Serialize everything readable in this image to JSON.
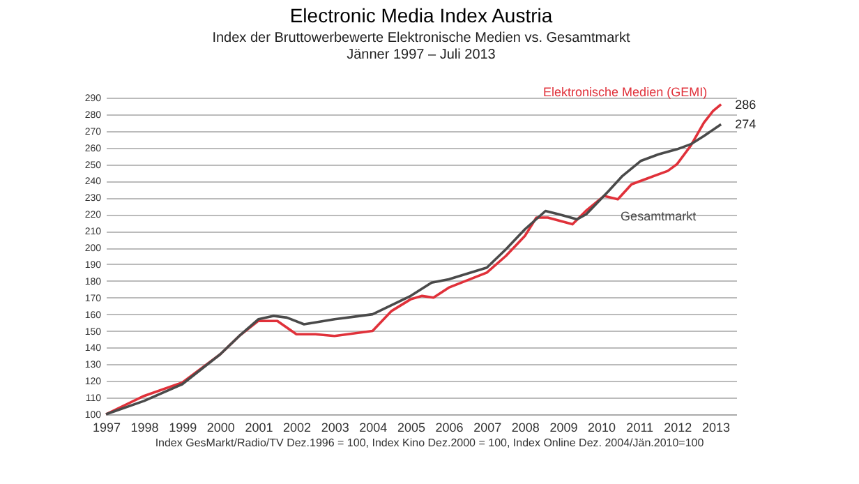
{
  "chart_data": {
    "type": "line",
    "title": "Electronic Media Index Austria",
    "subtitle": "Index der Bruttowerbewerte Elektronische Medien vs. Gesamtmarkt\nJänner 1997 – Juli 2013",
    "annotations": [
      "Index GesMarkt/Radio/TV Dez.1996 = 100, Index Kino Dez.2000 = 100, Index Online  Dez. 2004/Jän.2010=100"
    ],
    "series": [
      {
        "name": "Elektronische Medien (GEMI)",
        "color": "#e0313a",
        "x": [
          1997,
          1998,
          1999,
          2000,
          2000.5,
          2001,
          2001.5,
          2002,
          2002.5,
          2003,
          2004,
          2004.5,
          2005,
          2005.3,
          2005.6,
          2006,
          2007,
          2007.5,
          2008,
          2008.3,
          2008.6,
          2009.25,
          2009.6,
          2010.08,
          2010.44,
          2010.8,
          2011.27,
          2011.75,
          2011.99,
          2012.35,
          2012.7,
          2012.94,
          2013.15
        ],
        "values": [
          100,
          111,
          119,
          136,
          147,
          156,
          156,
          148,
          148,
          147,
          150,
          162,
          169,
          171,
          170,
          176,
          185,
          195,
          207,
          218,
          218,
          214,
          222,
          231,
          229,
          238,
          242,
          246,
          250,
          261,
          275,
          282,
          286
        ],
        "value_labels": [
          null,
          null,
          null,
          null,
          null,
          null,
          null,
          null,
          null,
          null,
          null,
          null,
          null,
          null,
          null,
          null,
          null,
          null,
          null,
          null,
          null,
          null,
          null,
          null,
          null,
          null,
          null,
          null,
          null,
          null,
          null,
          null,
          "286"
        ]
      },
      {
        "name": "Gesamtmarkt",
        "color": "#4a4a4a",
        "x": [
          1997,
          1998,
          1999,
          2000,
          2000.5,
          2001,
          2001.4,
          2001.75,
          2002.2,
          2003,
          2004,
          2005,
          2005.55,
          2006,
          2007,
          2007.5,
          2008,
          2008.54,
          2008.89,
          2009.37,
          2009.61,
          2010.2,
          2010.56,
          2011.04,
          2011.51,
          2011.99,
          2012.35,
          2012.7,
          2013.15
        ],
        "values": [
          100,
          108,
          118,
          136,
          147,
          157,
          159,
          158,
          154,
          157,
          160,
          171,
          179,
          181,
          188,
          199,
          211,
          222,
          220,
          217,
          220,
          234,
          243,
          252,
          256,
          259,
          262,
          267,
          274
        ],
        "value_labels": [
          null,
          null,
          null,
          null,
          null,
          null,
          null,
          null,
          null,
          null,
          null,
          null,
          null,
          null,
          null,
          null,
          null,
          null,
          null,
          null,
          null,
          null,
          null,
          null,
          null,
          null,
          null,
          null,
          "274"
        ]
      }
    ],
    "xlim": [
      1997,
      2013.55
    ],
    "xticks": [
      1997,
      1998,
      1999,
      2000,
      2001,
      2002,
      2003,
      2004,
      2005,
      2006,
      2007,
      2008,
      2009,
      2010,
      2011,
      2012,
      2013
    ],
    "ylim": [
      100,
      290
    ],
    "yticks": [
      100,
      110,
      120,
      130,
      140,
      150,
      160,
      170,
      180,
      190,
      200,
      210,
      220,
      230,
      240,
      250,
      260,
      270,
      280,
      290
    ],
    "grid": "y",
    "legend": false
  }
}
